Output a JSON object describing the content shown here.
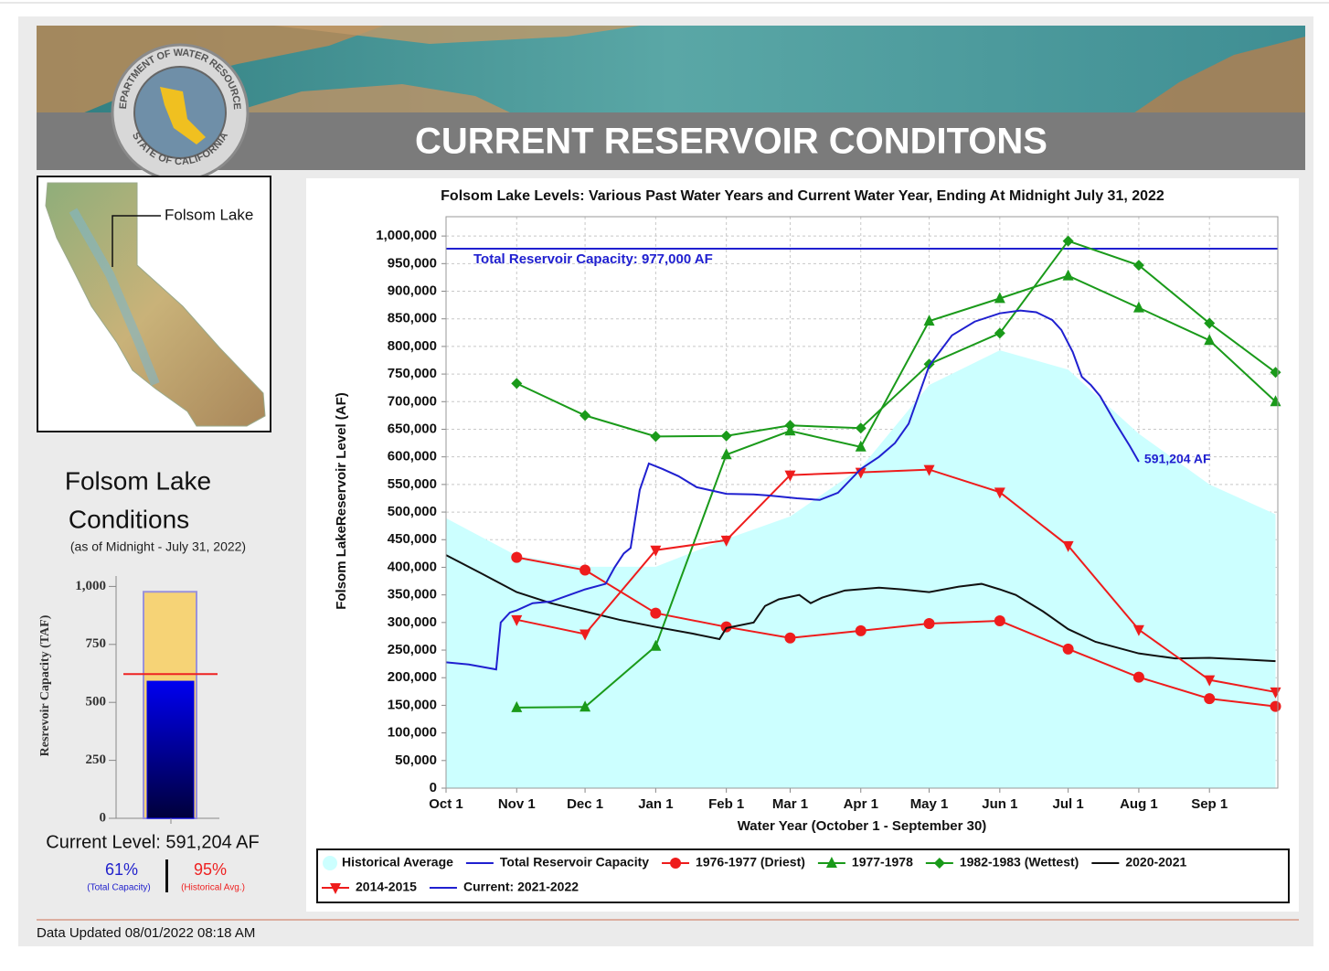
{
  "header": {
    "title": "CURRENT RESERVOIR CONDITONS",
    "seal_top": "DEPARTMENT OF WATER RESOURCES",
    "seal_bottom": "STATE OF CALIFORNIA"
  },
  "map": {
    "label": "Folsom Lake"
  },
  "conditions": {
    "title_lines": [
      "Folsom Lake",
      "Conditions"
    ],
    "subtitle": "(as of Midnight - July 31, 2022)",
    "current_level": "Current Level: 591,204 AF",
    "percent_capacity": "61%",
    "percent_capacity_label": "(Total Capacity)",
    "percent_average": "95%",
    "percent_average_label": "(Historical Avg.)"
  },
  "footer": {
    "updated": "Data Updated 08/01/2022 08:18 AM"
  },
  "chart_data": [
    {
      "type": "line",
      "title": "Folsom Lake Levels: Various Past Water Years and Current Water Year, Ending At Midnight July 31, 2022",
      "xlabel": "Water Year (October 1 - September 30)",
      "ylabel": "Folsom LakeReservoir Level (AF)",
      "grid": true,
      "xlim": [
        0,
        365
      ],
      "xticks": [
        {
          "value": 0,
          "label": "Oct 1"
        },
        {
          "value": 31,
          "label": "Nov 1"
        },
        {
          "value": 61,
          "label": "Dec 1"
        },
        {
          "value": 92,
          "label": "Jan 1"
        },
        {
          "value": 123,
          "label": "Feb 1"
        },
        {
          "value": 151,
          "label": "Mar 1"
        },
        {
          "value": 182,
          "label": "Apr 1"
        },
        {
          "value": 212,
          "label": "May 1"
        },
        {
          "value": 243,
          "label": "Jun 1"
        },
        {
          "value": 273,
          "label": "Jul 1"
        },
        {
          "value": 304,
          "label": "Aug 1"
        },
        {
          "value": 335,
          "label": "Sep 1"
        }
      ],
      "ylim": [
        0,
        1035000
      ],
      "yticks": [
        0,
        {
          "value": 50000,
          "label": "50,000"
        },
        {
          "value": 100000,
          "label": "100,000"
        },
        {
          "value": 150000,
          "label": "150,000"
        },
        {
          "value": 200000,
          "label": "200,000"
        },
        {
          "value": 250000,
          "label": "250,000"
        },
        {
          "value": 300000,
          "label": "300,000"
        },
        {
          "value": 350000,
          "label": "350,000"
        },
        {
          "value": 400000,
          "label": "400,000"
        },
        {
          "value": 450000,
          "label": "450,000"
        },
        {
          "value": 500000,
          "label": "500,000"
        },
        {
          "value": 550000,
          "label": "550,000"
        },
        {
          "value": 600000,
          "label": "600,000"
        },
        {
          "value": 650000,
          "label": "650,000"
        },
        {
          "value": 700000,
          "label": "700,000"
        },
        {
          "value": 750000,
          "label": "750,000"
        },
        {
          "value": 800000,
          "label": "800,000"
        },
        {
          "value": 850000,
          "label": "850,000"
        },
        {
          "value": 900000,
          "label": "900,000"
        },
        {
          "value": 950000,
          "label": "950,000"
        },
        {
          "value": 1000000,
          "label": "1,000,000"
        }
      ],
      "capacity_annotation": "Total Reservoir Capacity: 977,000 AF",
      "current_annotation": "591,204 AF",
      "series": [
        {
          "name": "Historical Average",
          "color": "#ccffff",
          "style": "area",
          "x": [
            0,
            31,
            61,
            92,
            123,
            151,
            182,
            212,
            243,
            273,
            304,
            335,
            364
          ],
          "values": [
            489000,
            421000,
            401000,
            401000,
            451000,
            492000,
            580000,
            730000,
            793000,
            758000,
            642000,
            550000,
            496000
          ]
        },
        {
          "name": "Total Reservoir Capacity",
          "color": "#2020d0",
          "style": "line",
          "x": [
            0,
            365
          ],
          "values": [
            977000,
            977000
          ]
        },
        {
          "name": "1976-1977 (Driest)",
          "color": "#ee1c1c",
          "style": "line",
          "marker": "circle",
          "x": [
            31,
            61,
            92,
            123,
            151,
            182,
            212,
            243,
            273,
            304,
            335,
            364
          ],
          "values": [
            418000,
            395000,
            317000,
            292000,
            272000,
            285000,
            298000,
            303000,
            252000,
            201000,
            162000,
            148000
          ]
        },
        {
          "name": "1977-1978",
          "color": "#1a9a1a",
          "style": "line",
          "marker": "triangle",
          "x": [
            31,
            61,
            92,
            123,
            151,
            182,
            212,
            243,
            273,
            304,
            335,
            364
          ],
          "values": [
            146000,
            147000,
            257000,
            604000,
            647000,
            618000,
            846000,
            887000,
            928000,
            870000,
            811000,
            700000
          ]
        },
        {
          "name": "1982-1983 (Wettest)",
          "color": "#1a9a1a",
          "style": "line",
          "marker": "diamond",
          "x": [
            31,
            61,
            92,
            123,
            151,
            182,
            212,
            243,
            273,
            304,
            335,
            364
          ],
          "values": [
            733000,
            675000,
            637000,
            638000,
            657000,
            652000,
            768000,
            824000,
            991000,
            947000,
            842000,
            753000
          ]
        },
        {
          "name": "2020-2021",
          "color": "#111111",
          "style": "line",
          "x": [
            0,
            15,
            31,
            46,
            61,
            76,
            92,
            108,
            120,
            123,
            135,
            140,
            146,
            155,
            160,
            165,
            175,
            190,
            200,
            212,
            225,
            235,
            243,
            250,
            262,
            273,
            285,
            304,
            320,
            335,
            350,
            364
          ],
          "values": [
            422000,
            390000,
            355000,
            335000,
            320000,
            305000,
            292000,
            280000,
            270000,
            290000,
            300000,
            330000,
            342000,
            350000,
            335000,
            345000,
            358000,
            363000,
            360000,
            355000,
            365000,
            370000,
            360000,
            350000,
            320000,
            288000,
            265000,
            244000,
            235000,
            236000,
            233000,
            230000
          ]
        },
        {
          "name": "2014-2015",
          "color": "#ee1c1c",
          "style": "line",
          "marker": "triangle-down",
          "x": [
            31,
            61,
            92,
            123,
            151,
            182,
            212,
            243,
            273,
            304,
            335,
            364
          ],
          "values": [
            305000,
            279000,
            431000,
            449000,
            567000,
            572000,
            577000,
            536000,
            439000,
            287000,
            196000,
            174000
          ]
        },
        {
          "name": "Current: 2021-2022",
          "color": "#2020d0",
          "style": "line",
          "x": [
            0,
            10,
            22,
            24,
            28,
            31,
            38,
            46,
            61,
            70,
            74,
            78,
            81,
            85,
            89,
            95,
            102,
            110,
            123,
            135,
            142,
            154,
            164,
            172,
            182,
            190,
            197,
            203,
            212,
            222,
            232,
            243,
            252,
            259,
            266,
            270,
            275,
            279,
            283,
            287,
            294,
            300,
            304
          ],
          "values": [
            228000,
            224000,
            215000,
            300000,
            318000,
            322000,
            335000,
            338000,
            360000,
            370000,
            400000,
            425000,
            435000,
            540000,
            588000,
            578000,
            565000,
            545000,
            533000,
            532000,
            530000,
            525000,
            522000,
            535000,
            578000,
            600000,
            625000,
            660000,
            765000,
            820000,
            845000,
            860000,
            865000,
            862000,
            848000,
            830000,
            790000,
            745000,
            730000,
            710000,
            660000,
            620000,
            591204
          ]
        }
      ]
    },
    {
      "type": "gauge",
      "ylabel": "Resrevoir Capacity (TAF)",
      "ylim": [
        0,
        1045
      ],
      "yticks": [
        0,
        250,
        500,
        750,
        {
          "value": 1000,
          "label": "1,000"
        }
      ],
      "capacity": 977,
      "level": 591.204,
      "historical_average": 622.3,
      "capacity_color": "#f6d376",
      "level_color": "#0000ee",
      "average_color": "#ee2222"
    }
  ]
}
